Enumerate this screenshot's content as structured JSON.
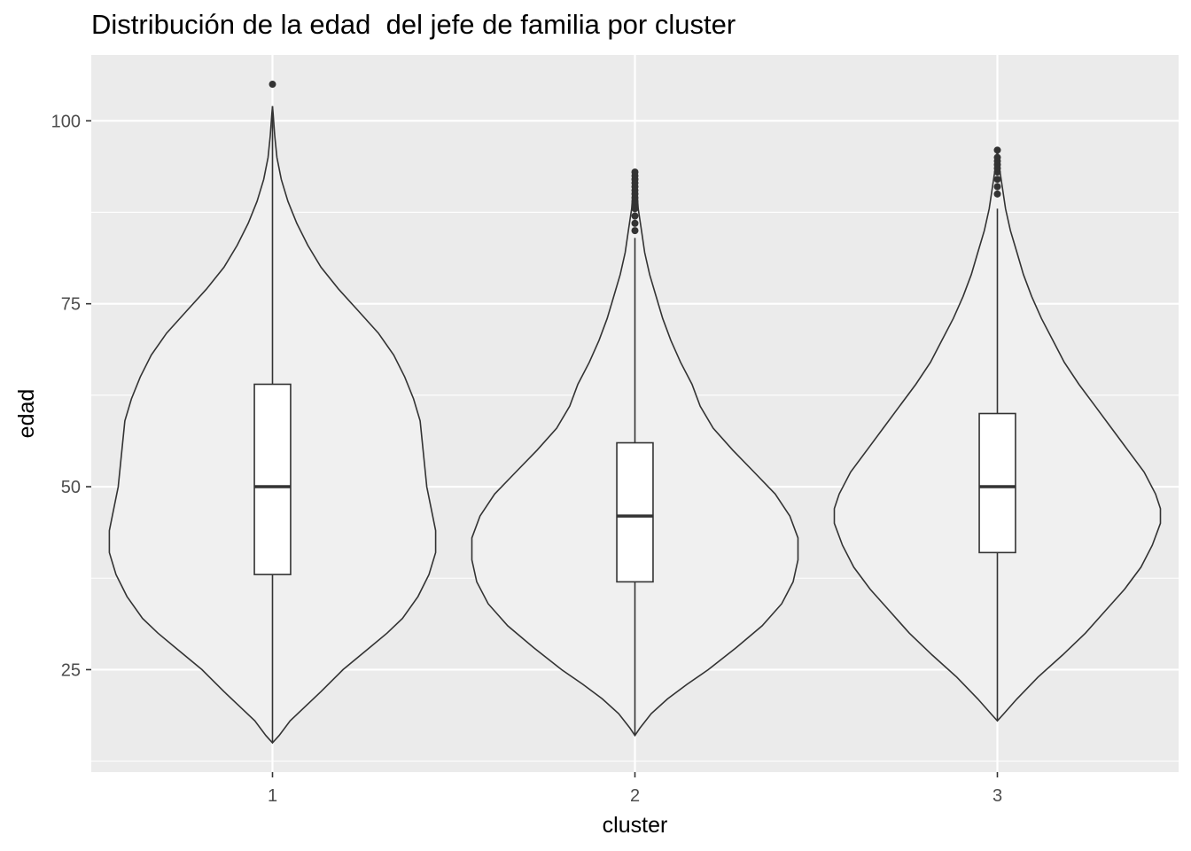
{
  "chart_data": {
    "type": "violin",
    "title": "Distribución de la edad  del jefe de familia por cluster",
    "xlabel": "cluster",
    "ylabel": "edad",
    "categories": [
      "1",
      "2",
      "3"
    ],
    "ylim": [
      11,
      109
    ],
    "yticks": [
      25,
      50,
      75,
      100
    ],
    "grid": true,
    "legend": "none",
    "colors": {
      "panel": "#ebebeb",
      "grid": "#ffffff",
      "violin_fill": "#f0f0f0",
      "outline": "#333333",
      "box_fill": "#ffffff",
      "tick_text": "#4d4d4d",
      "text": "#000000"
    },
    "groups": [
      {
        "category": "1",
        "min": 15,
        "max": 105,
        "boxplot": {
          "lower_whisker": 15,
          "q1": 38,
          "median": 50,
          "q3": 64,
          "upper_whisker": 102
        },
        "outliers": [
          105
        ],
        "density": [
          [
            15,
            0.0
          ],
          [
            16,
            0.03
          ],
          [
            18,
            0.08
          ],
          [
            20,
            0.15
          ],
          [
            22,
            0.22
          ],
          [
            25,
            0.32
          ],
          [
            28,
            0.44
          ],
          [
            30,
            0.52
          ],
          [
            32,
            0.59
          ],
          [
            35,
            0.66
          ],
          [
            38,
            0.71
          ],
          [
            41,
            0.74
          ],
          [
            44,
            0.74
          ],
          [
            47,
            0.72
          ],
          [
            50,
            0.7
          ],
          [
            53,
            0.69
          ],
          [
            56,
            0.68
          ],
          [
            59,
            0.67
          ],
          [
            62,
            0.64
          ],
          [
            65,
            0.6
          ],
          [
            68,
            0.55
          ],
          [
            71,
            0.48
          ],
          [
            74,
            0.39
          ],
          [
            77,
            0.3
          ],
          [
            80,
            0.22
          ],
          [
            83,
            0.16
          ],
          [
            86,
            0.11
          ],
          [
            89,
            0.07
          ],
          [
            92,
            0.04
          ],
          [
            95,
            0.02
          ],
          [
            98,
            0.01
          ],
          [
            101,
            0.003
          ],
          [
            102,
            0.0
          ]
        ]
      },
      {
        "category": "2",
        "min": 16,
        "max": 93,
        "boxplot": {
          "lower_whisker": 16,
          "q1": 37,
          "median": 46,
          "q3": 56,
          "upper_whisker": 84
        },
        "outliers": [
          85,
          86,
          87,
          88,
          88.5,
          89,
          89.5,
          90,
          90.5,
          91,
          91.5,
          92,
          92.5,
          93
        ],
        "density": [
          [
            16,
            0.0
          ],
          [
            17,
            0.03
          ],
          [
            19,
            0.1
          ],
          [
            21,
            0.2
          ],
          [
            23,
            0.32
          ],
          [
            25,
            0.45
          ],
          [
            28,
            0.62
          ],
          [
            31,
            0.78
          ],
          [
            34,
            0.9
          ],
          [
            37,
            0.97
          ],
          [
            40,
            1.0
          ],
          [
            43,
            1.0
          ],
          [
            46,
            0.95
          ],
          [
            49,
            0.86
          ],
          [
            52,
            0.73
          ],
          [
            55,
            0.6
          ],
          [
            58,
            0.48
          ],
          [
            61,
            0.4
          ],
          [
            64,
            0.35
          ],
          [
            67,
            0.28
          ],
          [
            70,
            0.22
          ],
          [
            73,
            0.17
          ],
          [
            76,
            0.13
          ],
          [
            79,
            0.09
          ],
          [
            82,
            0.06
          ],
          [
            85,
            0.04
          ],
          [
            88,
            0.02
          ],
          [
            91,
            0.01
          ],
          [
            93,
            0.0
          ]
        ]
      },
      {
        "category": "3",
        "min": 18,
        "max": 96,
        "boxplot": {
          "lower_whisker": 18,
          "q1": 41,
          "median": 50,
          "q3": 60,
          "upper_whisker": 88
        },
        "outliers": [
          90,
          91,
          92,
          93,
          93.5,
          94,
          94.5,
          95,
          96
        ],
        "density": [
          [
            18,
            0.0
          ],
          [
            19,
            0.04
          ],
          [
            21,
            0.12
          ],
          [
            24,
            0.25
          ],
          [
            27,
            0.4
          ],
          [
            30,
            0.54
          ],
          [
            33,
            0.66
          ],
          [
            36,
            0.78
          ],
          [
            39,
            0.88
          ],
          [
            42,
            0.95
          ],
          [
            45,
            1.0
          ],
          [
            47,
            1.0
          ],
          [
            49,
            0.97
          ],
          [
            52,
            0.9
          ],
          [
            55,
            0.8
          ],
          [
            58,
            0.7
          ],
          [
            61,
            0.6
          ],
          [
            64,
            0.5
          ],
          [
            67,
            0.41
          ],
          [
            70,
            0.34
          ],
          [
            73,
            0.27
          ],
          [
            76,
            0.21
          ],
          [
            79,
            0.16
          ],
          [
            82,
            0.12
          ],
          [
            85,
            0.08
          ],
          [
            88,
            0.05
          ],
          [
            91,
            0.03
          ],
          [
            94,
            0.01
          ],
          [
            96,
            0.0
          ]
        ]
      }
    ]
  }
}
